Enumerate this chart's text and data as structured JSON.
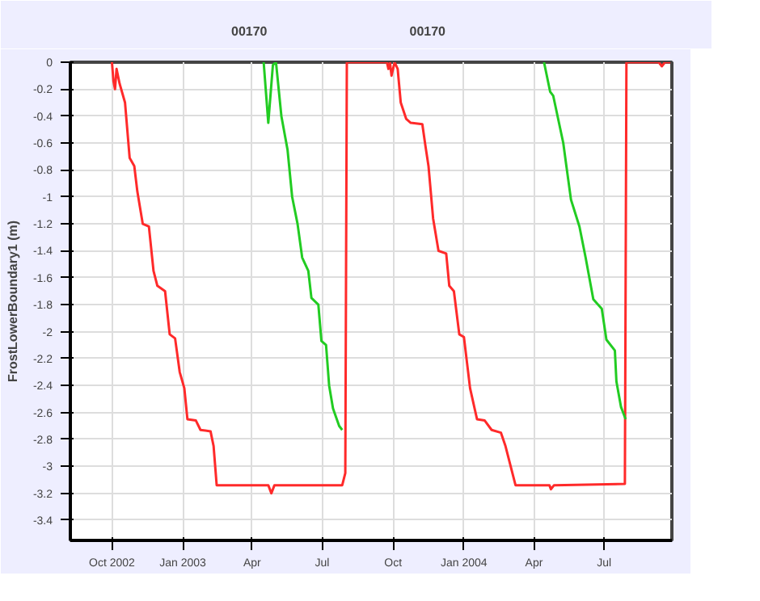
{
  "chart_data": {
    "type": "line",
    "ylabel": "FrostLowerBoundary1 (m)",
    "xlim": [
      "2002-08-08",
      "2004-09-27"
    ],
    "ylim": [
      -3.55,
      0
    ],
    "xticks": [
      {
        "value": "2002-10-01",
        "label": "Oct 2002"
      },
      {
        "value": "2003-01-01",
        "label": "Jan 2003"
      },
      {
        "value": "2003-04-01",
        "label": "Apr"
      },
      {
        "value": "2003-07-01",
        "label": "Jul"
      },
      {
        "value": "2003-10-01",
        "label": "Oct"
      },
      {
        "value": "2004-01-01",
        "label": "Jan 2004"
      },
      {
        "value": "2004-04-01",
        "label": "Apr"
      },
      {
        "value": "2004-07-01",
        "label": "Jul"
      }
    ],
    "yticks": [
      0,
      -0.2,
      -0.4,
      -0.6,
      -0.8,
      -1,
      -1.2,
      -1.4,
      -1.6,
      -1.8,
      -2,
      -2.2,
      -2.4,
      -2.6,
      -2.8,
      -3,
      -3.2,
      -3.4
    ],
    "grid": true,
    "legend": "top left",
    "marker": "none",
    "line_style": "solid",
    "series": [
      {
        "name": "00170",
        "color": "#ff2a2a",
        "x": [
          "2002-10-01",
          "2002-10-03",
          "2002-10-05",
          "2002-10-07",
          "2002-10-11",
          "2002-10-18",
          "2002-10-24",
          "2002-10-30",
          "2002-11-03",
          "2002-11-10",
          "2002-11-18",
          "2002-11-24",
          "2002-11-29",
          "2002-12-09",
          "2002-12-15",
          "2002-12-22",
          "2002-12-28",
          "2003-01-03",
          "2003-01-07",
          "2003-01-18",
          "2003-01-24",
          "2003-02-06",
          "2003-02-10",
          "2003-02-14",
          "2003-04-22",
          "2003-04-26",
          "2003-04-30",
          "2003-07-27",
          "2003-07-31",
          "2003-08-02",
          "2003-09-23",
          "2003-09-25",
          "2003-09-27",
          "2003-09-29",
          "2003-10-03",
          "2003-10-07",
          "2003-10-11",
          "2003-10-18",
          "2003-10-24",
          "2003-11-08",
          "2003-11-12",
          "2003-11-16",
          "2003-11-22",
          "2003-11-29",
          "2003-12-09",
          "2003-12-13",
          "2003-12-19",
          "2003-12-26",
          "2004-01-01",
          "2004-01-09",
          "2004-01-18",
          "2004-01-28",
          "2004-02-06",
          "2004-02-18",
          "2004-02-24",
          "2004-03-08",
          "2004-04-21",
          "2004-04-23",
          "2004-04-27",
          "2004-07-28",
          "2004-07-30",
          "2004-09-10",
          "2004-09-14",
          "2004-09-18",
          "2004-09-25"
        ],
        "values": [
          0,
          -0.14,
          -0.2,
          -0.05,
          -0.16,
          -0.3,
          -0.71,
          -0.77,
          -0.96,
          -1.2,
          -1.22,
          -1.55,
          -1.66,
          -1.7,
          -2.02,
          -2.05,
          -2.3,
          -2.42,
          -2.65,
          -2.66,
          -2.73,
          -2.74,
          -2.85,
          -3.14,
          -3.14,
          -3.2,
          -3.14,
          -3.14,
          -3.05,
          0,
          0,
          -0.05,
          0,
          -0.1,
          0,
          -0.05,
          -0.3,
          -0.42,
          -0.45,
          -0.46,
          -0.62,
          -0.77,
          -1.16,
          -1.4,
          -1.42,
          -1.66,
          -1.7,
          -2.02,
          -2.04,
          -2.42,
          -2.65,
          -2.66,
          -2.73,
          -2.75,
          -2.85,
          -3.14,
          -3.14,
          -3.17,
          -3.14,
          -3.13,
          0,
          0,
          -0.03,
          0,
          0
        ]
      },
      {
        "name": "00170",
        "color": "#22cc22",
        "x": [
          "2003-04-16",
          "2003-04-22",
          "2003-04-28",
          "2003-05-02",
          "2003-05-09",
          "2003-05-17",
          "2003-05-23",
          "2003-05-30",
          "2003-06-05",
          "2003-06-13",
          "2003-06-17",
          "2003-06-26",
          "2003-06-30",
          "2003-07-06",
          "2003-07-10",
          "2003-07-15",
          "2003-07-23",
          "2003-07-27",
          "2003-10-01",
          "2004-04-14",
          "2004-04-22",
          "2004-04-26",
          "2004-05-09",
          "2004-05-13",
          "2004-05-19",
          "2004-05-30",
          "2004-06-07",
          "2004-06-17",
          "2004-06-28",
          "2004-07-04",
          "2004-07-15",
          "2004-07-17",
          "2004-07-23",
          "2004-07-29"
        ],
        "values": [
          0,
          -0.45,
          -0.02,
          0,
          -0.4,
          -0.65,
          -1.0,
          -1.2,
          -1.45,
          -1.55,
          -1.75,
          -1.8,
          -2.07,
          -2.1,
          -2.4,
          -2.57,
          -2.7,
          -2.73,
          null,
          0,
          -0.22,
          -0.25,
          -0.6,
          -0.77,
          -1.02,
          -1.22,
          -1.45,
          -1.76,
          -1.83,
          -2.06,
          -2.14,
          -2.37,
          -2.56,
          -2.65
        ]
      }
    ]
  }
}
